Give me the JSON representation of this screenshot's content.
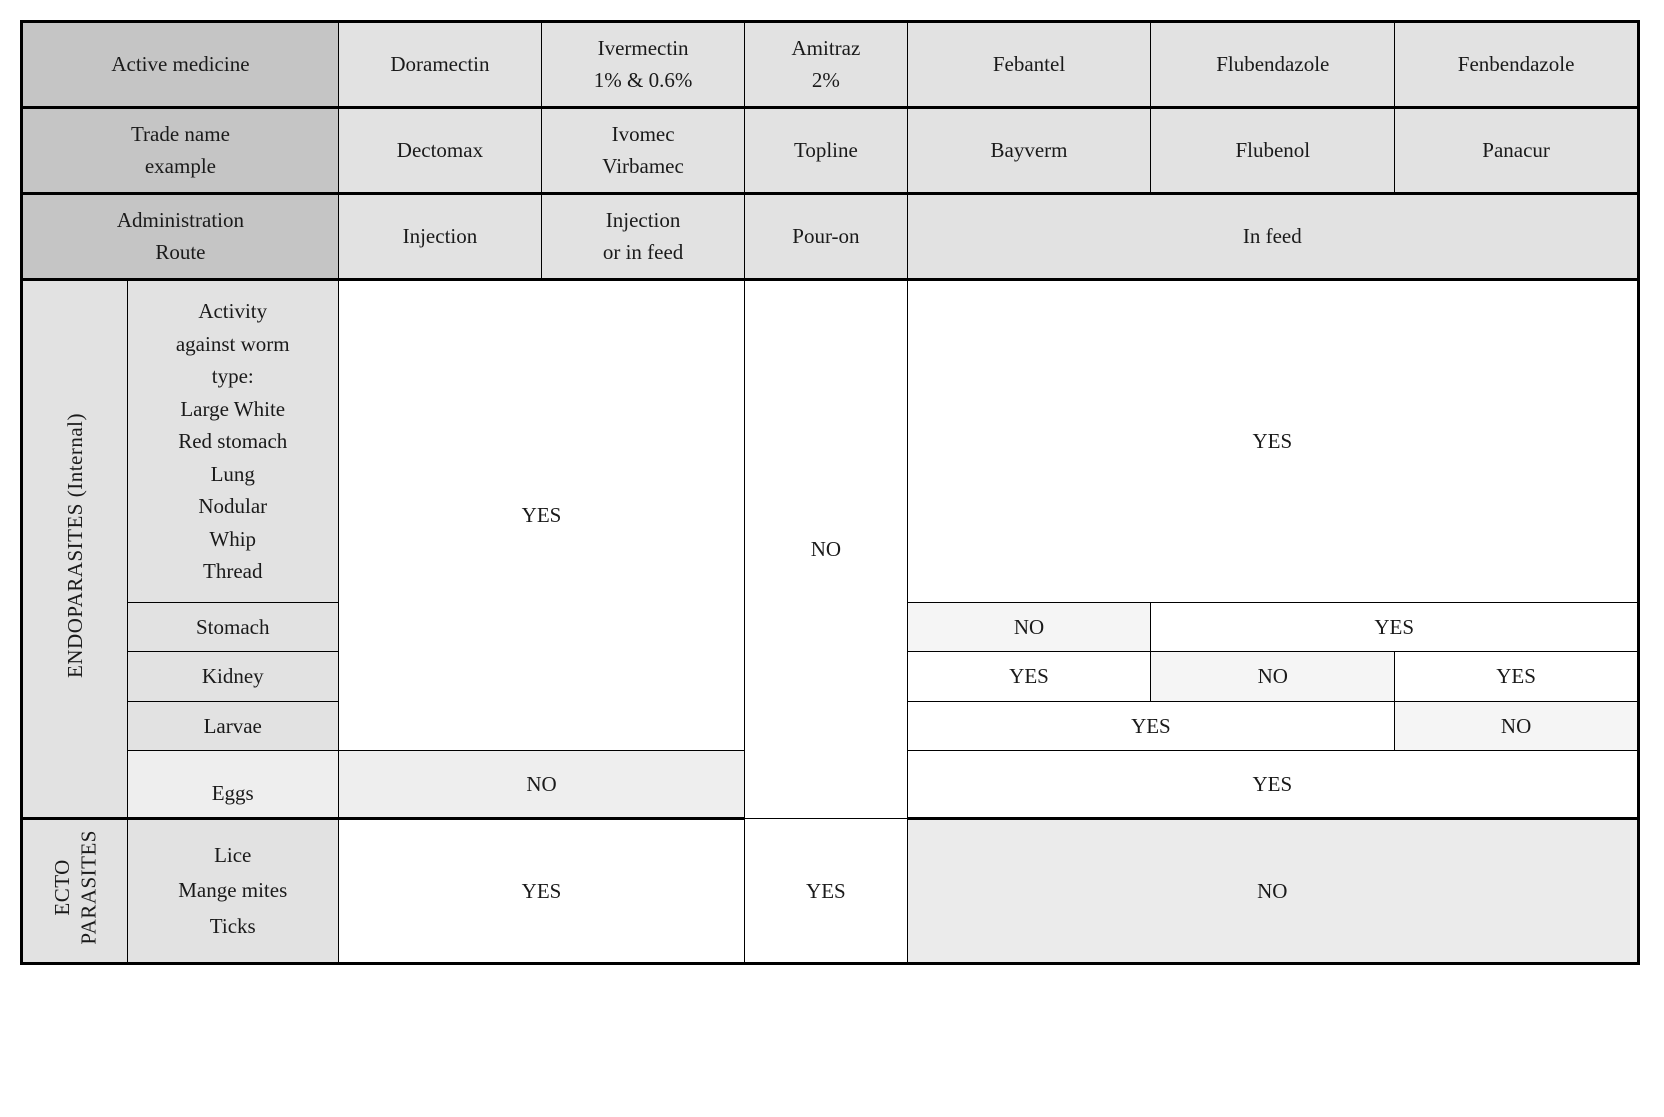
{
  "header": {
    "active_medicine": "Active medicine",
    "trade_name": "Trade name",
    "trade_example": "example",
    "admin_label": "Administration",
    "route_label": "Route"
  },
  "medicines": {
    "doramectin": "Doramectin",
    "ivermectin": "Ivermectin\n1% & 0.6%",
    "amitraz": "Amitraz\n2%",
    "febantel": "Febantel",
    "flubendazole": "Flubendazole",
    "fenbendazole": "Fenbendazole"
  },
  "trade": {
    "dectomax": "Dectomax",
    "ivomec": "Ivomec\nVirbamec",
    "topline": "Topline",
    "bayverm": "Bayverm",
    "flubenol": "Flubenol",
    "panacur": "Panacur"
  },
  "admin": {
    "injection": "Injection",
    "injection_feed": "Injection\nor in feed",
    "pouron": "Pour-on",
    "infeed": "In feed"
  },
  "sections": {
    "endo": "ENDOPARASITES  (Internal)",
    "ecto": "ECTO\nPARASITES"
  },
  "rows": {
    "wormtypes": "Activity\nagainst worm\ntype:\nLarge White\nRed stomach\nLung\nNodular\nWhip\nThread",
    "stomach": "Stomach",
    "kidney": "Kidney",
    "larvae": "Larvae",
    "eggs": "Eggs",
    "ecto_list": "Lice\nMange mites\nTicks"
  },
  "values": {
    "yes": "YES",
    "no": "NO"
  }
}
